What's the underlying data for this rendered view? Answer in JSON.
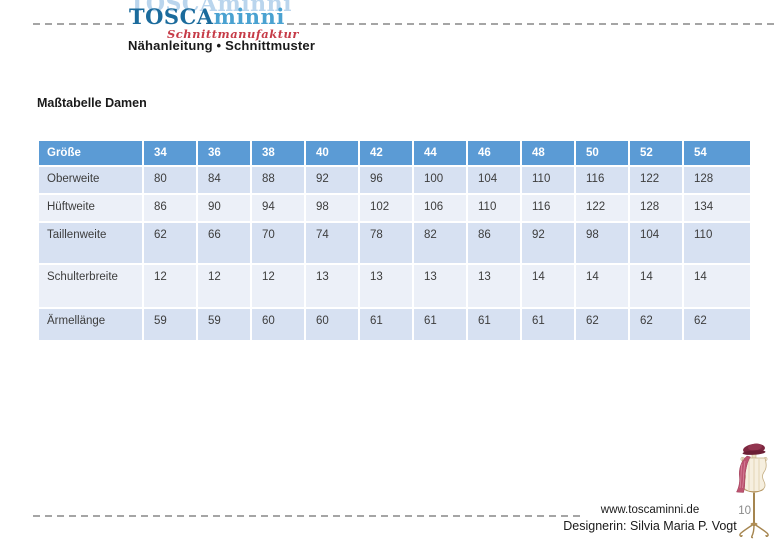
{
  "header": {
    "ghost_logo": "TOSCAminni",
    "logo_part1": "TOSCA",
    "logo_part2": "minni",
    "logo_subtitle": "Schnittmanufaktur",
    "product_line": "Nähanleitung • Schnittmuster"
  },
  "title": "Maßtabelle Damen",
  "table": {
    "header": [
      "Größe",
      "34",
      "36",
      "38",
      "40",
      "42",
      "44",
      "46",
      "48",
      "50",
      "52",
      "54"
    ],
    "rows": [
      {
        "label": "Oberweite",
        "values": [
          "80",
          "84",
          "88",
          "92",
          "96",
          "100",
          "104",
          "110",
          "116",
          "122",
          "128"
        ]
      },
      {
        "label": "Hüftweite",
        "values": [
          "86",
          "90",
          "94",
          "98",
          "102",
          "106",
          "110",
          "116",
          "122",
          "128",
          "134"
        ]
      },
      {
        "label": "Taillenweite",
        "values": [
          "62",
          "66",
          "70",
          "74",
          "78",
          "82",
          "86",
          "92",
          "98",
          "104",
          "110"
        ]
      },
      {
        "label": "Schulterbreite",
        "values": [
          "12",
          "12",
          "12",
          "13",
          "13",
          "13",
          "13",
          "14",
          "14",
          "14",
          "14"
        ]
      },
      {
        "label": "Ärmellänge",
        "values": [
          "59",
          "59",
          "60",
          "60",
          "61",
          "61",
          "61",
          "61",
          "62",
          "62",
          "62"
        ]
      }
    ]
  },
  "footer": {
    "website": "www.toscaminni.de",
    "designer": "Designerin: Silvia Maria P. Vogt",
    "page_number": "10"
  },
  "icons": {
    "mannequin": "dress-form-illustration"
  },
  "colors": {
    "table_header_bg": "#5b9bd5",
    "band_dark": "#d7e1f2",
    "band_light": "#ecf0f8",
    "logo_dark_blue": "#1b6b9c",
    "logo_light_blue": "#4aa2d1",
    "subtitle_red": "#c63b47",
    "dash_gray": "#a5a5a5"
  }
}
